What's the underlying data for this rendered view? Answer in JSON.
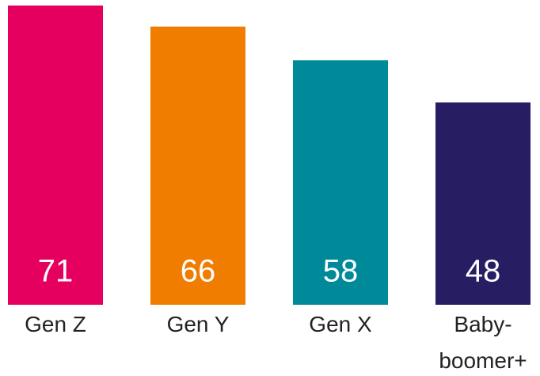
{
  "chart_data": {
    "type": "bar",
    "categories": [
      "Gen Z",
      "Gen Y",
      "Gen X",
      "Baby-boomer+"
    ],
    "values": [
      71,
      66,
      58,
      48
    ],
    "colors": [
      "#e5005f",
      "#f07c00",
      "#008a99",
      "#271d62"
    ]
  }
}
